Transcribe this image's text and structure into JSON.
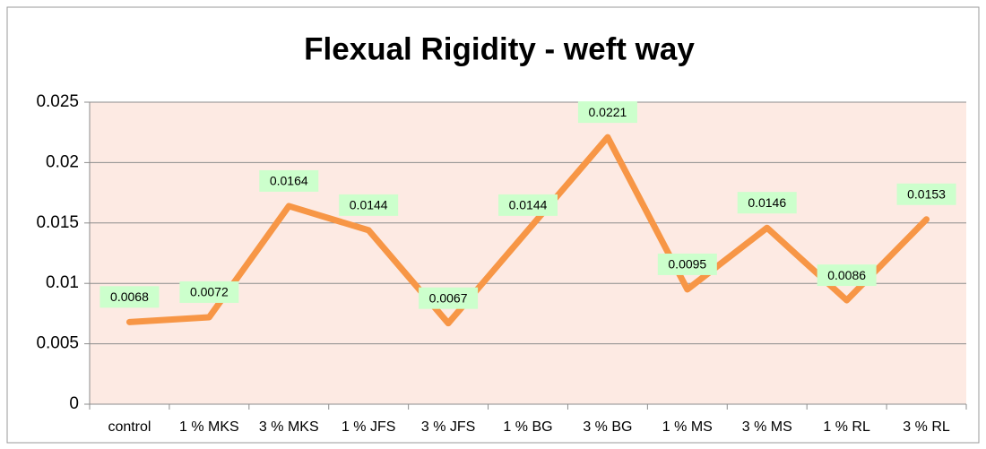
{
  "chart_data": {
    "type": "line",
    "title": "Flexual Rigidity - weft way",
    "categories": [
      "control",
      "1 % MKS",
      "3 % MKS",
      "1 % JFS",
      "3 % JFS",
      "1 % BG",
      "3 % BG",
      "1 % MS",
      "3 % MS",
      "1 % RL",
      "3 % RL"
    ],
    "values": [
      0.0068,
      0.0072,
      0.0164,
      0.0144,
      0.0067,
      0.0144,
      0.0221,
      0.0095,
      0.0146,
      0.0086,
      0.0153
    ],
    "color": "#f79646",
    "label_background": "#ccffcc",
    "plot_background": "#fdeae3",
    "ylim": [
      0,
      0.025
    ],
    "yticks": [
      0,
      0.005,
      0.01,
      0.015,
      0.02,
      0.025
    ],
    "grid": true
  }
}
